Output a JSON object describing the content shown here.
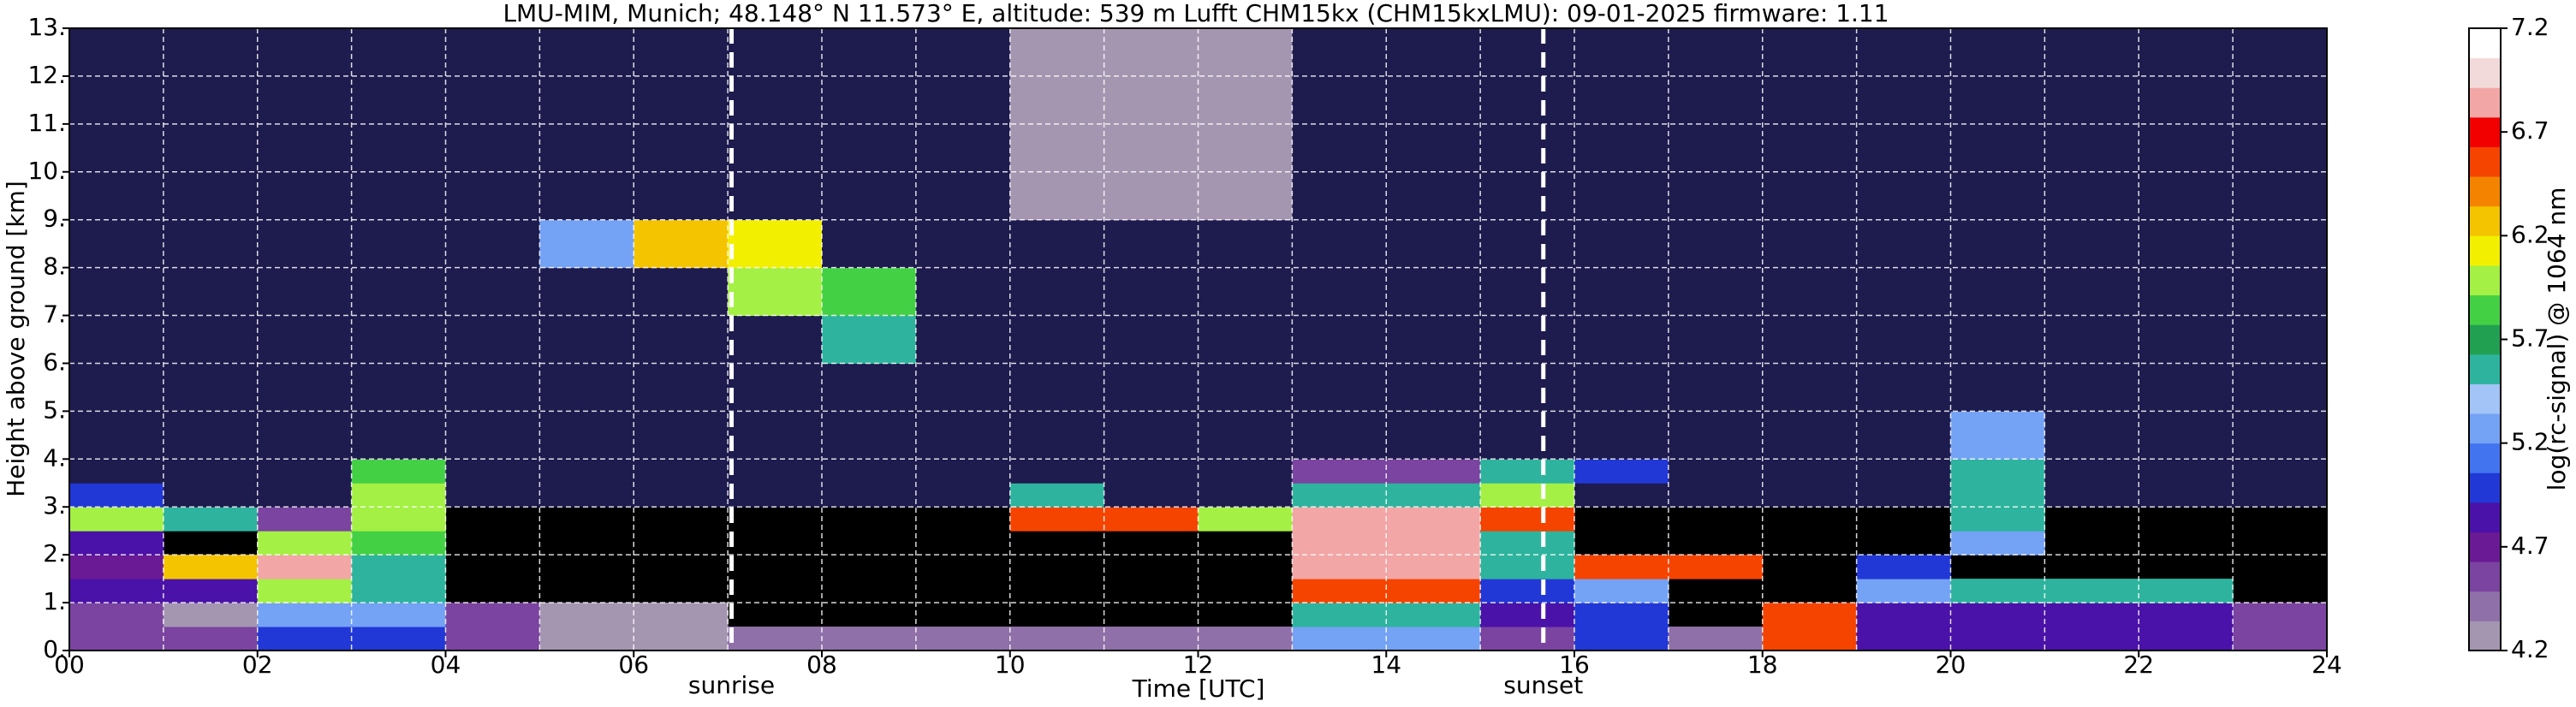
{
  "chart_data": {
    "type": "heatmap",
    "title": "LMU-MIM, Munich; 48.148° N 11.573° E, altitude: 539 m    Lufft CHM15kx (CHM15kxLMU): 09-01-2025    firmware: 1.11",
    "xlabel": "Time [UTC]",
    "ylabel": "Height above ground [km]",
    "xlim": [
      0,
      24
    ],
    "ylim": [
      0,
      13
    ],
    "xticks": [
      {
        "value": 0,
        "label": "00"
      },
      {
        "value": 2,
        "label": "02"
      },
      {
        "value": 4,
        "label": "04"
      },
      {
        "value": 6,
        "label": "06"
      },
      {
        "value": 8,
        "label": "08"
      },
      10,
      12,
      14,
      16,
      18,
      20,
      22,
      24
    ],
    "xminorticks": [
      1,
      3,
      5,
      7,
      9,
      11,
      13,
      15,
      17,
      19,
      21,
      23
    ],
    "yticks": [
      {
        "value": 0,
        "label": "0."
      },
      {
        "value": 1,
        "label": "1."
      },
      {
        "value": 2,
        "label": "2."
      },
      {
        "value": 3,
        "label": "3."
      },
      {
        "value": 4,
        "label": "4."
      },
      {
        "value": 5,
        "label": "5."
      },
      {
        "value": 6,
        "label": "6."
      },
      {
        "value": 7,
        "label": "7."
      },
      {
        "value": 8,
        "label": "8."
      },
      {
        "value": 9,
        "label": "9."
      },
      {
        "value": 10,
        "label": "10."
      },
      {
        "value": 11,
        "label": "11."
      },
      {
        "value": 12,
        "label": "12."
      },
      {
        "value": 13,
        "label": "13."
      }
    ],
    "grid": true,
    "x_edges": [
      0,
      1,
      2,
      3,
      4,
      5,
      6,
      7,
      8,
      9,
      10,
      11,
      12,
      13,
      14,
      15,
      16,
      17,
      18,
      19,
      20,
      21,
      22,
      23,
      24
    ],
    "y_edges": [
      0,
      0.5,
      1,
      1.5,
      2,
      2.5,
      3,
      3.5,
      4,
      5,
      6,
      7,
      8,
      9,
      10,
      11,
      12,
      13
    ],
    "z": [
      [
        4.6,
        4.5,
        5.0,
        5.0,
        4.5,
        4.3,
        4.3,
        4.4,
        4.4,
        4.4,
        4.4,
        4.4,
        4.4,
        5.2,
        5.2,
        4.5,
        5.0,
        4.4,
        6.5,
        4.8,
        4.8,
        4.8,
        4.8,
        4.5
      ],
      [
        4.5,
        4.3,
        5.2,
        5.2,
        4.6,
        4.3,
        4.3,
        null,
        null,
        null,
        null,
        null,
        null,
        5.5,
        5.5,
        4.8,
        5.0,
        null,
        6.5,
        4.8,
        4.9,
        4.9,
        4.9,
        4.5
      ],
      [
        4.8,
        4.9,
        6.0,
        5.5,
        null,
        null,
        null,
        null,
        null,
        null,
        null,
        null,
        null,
        6.5,
        6.5,
        5.0,
        5.3,
        null,
        null,
        5.2,
        5.5,
        5.5,
        5.5,
        null
      ],
      [
        4.7,
        6.3,
        6.8,
        5.6,
        null,
        null,
        null,
        null,
        null,
        null,
        null,
        null,
        null,
        6.8,
        6.8,
        5.5,
        6.5,
        6.5,
        null,
        5.0,
        null,
        null,
        null,
        null
      ],
      [
        4.8,
        null,
        6.0,
        5.8,
        null,
        null,
        null,
        null,
        null,
        null,
        null,
        null,
        null,
        6.8,
        6.8,
        5.5,
        null,
        null,
        null,
        null,
        5.3,
        null,
        null,
        null
      ],
      [
        6.0,
        5.5,
        4.5,
        6.0,
        null,
        null,
        null,
        null,
        null,
        null,
        6.5,
        6.5,
        6.0,
        6.8,
        6.8,
        6.5,
        null,
        null,
        null,
        null,
        5.5,
        null,
        null,
        null
      ],
      [
        5.0,
        4.0,
        4.0,
        6.0,
        4.0,
        4.0,
        4.0,
        4.0,
        4.0,
        4.0,
        5.5,
        4.0,
        4.0,
        5.5,
        5.5,
        6.0,
        4.0,
        4.0,
        4.0,
        4.0,
        5.5,
        4.0,
        4.0,
        4.0
      ],
      [
        4.0,
        4.0,
        4.0,
        5.8,
        4.0,
        4.0,
        4.0,
        4.0,
        4.0,
        4.0,
        4.0,
        4.0,
        4.0,
        4.5,
        4.5,
        5.5,
        5.0,
        4.0,
        4.0,
        4.0,
        5.6,
        4.0,
        4.0,
        4.0
      ],
      [
        4.0,
        4.0,
        4.0,
        4.0,
        4.0,
        4.0,
        4.0,
        4.0,
        4.0,
        4.0,
        4.0,
        4.0,
        4.0,
        4.0,
        4.0,
        4.0,
        4.0,
        4.0,
        4.0,
        4.0,
        5.3,
        4.0,
        4.0,
        4.0
      ],
      [
        4.0,
        4.0,
        4.0,
        4.0,
        4.0,
        4.0,
        4.0,
        4.0,
        4.0,
        4.0,
        4.0,
        4.0,
        4.0,
        4.0,
        4.0,
        4.0,
        4.0,
        4.0,
        4.0,
        4.0,
        4.0,
        4.0,
        4.0,
        4.0
      ],
      [
        4.0,
        4.0,
        4.0,
        4.0,
        4.0,
        4.0,
        4.0,
        4.0,
        5.5,
        4.0,
        4.0,
        4.0,
        4.0,
        4.0,
        4.0,
        4.0,
        4.0,
        4.0,
        4.0,
        4.0,
        4.0,
        4.0,
        4.0,
        4.0
      ],
      [
        4.0,
        4.0,
        4.0,
        4.0,
        4.0,
        4.0,
        4.0,
        6.0,
        5.8,
        4.0,
        4.0,
        4.0,
        4.0,
        4.0,
        4.0,
        4.0,
        4.0,
        4.0,
        4.0,
        4.0,
        4.0,
        4.0,
        4.0,
        4.0
      ],
      [
        4.0,
        4.0,
        4.0,
        4.0,
        4.0,
        5.3,
        6.2,
        6.1,
        4.0,
        4.0,
        4.0,
        4.0,
        4.0,
        4.0,
        4.0,
        4.0,
        4.0,
        4.0,
        4.0,
        4.0,
        4.0,
        4.0,
        4.0,
        4.0
      ],
      [
        4.0,
        4.0,
        4.0,
        4.0,
        4.0,
        4.0,
        4.0,
        4.0,
        4.0,
        4.0,
        4.2,
        4.2,
        4.2,
        4.0,
        4.0,
        4.0,
        4.0,
        4.0,
        4.0,
        4.0,
        4.0,
        4.0,
        4.0,
        4.0
      ],
      [
        4.0,
        4.0,
        4.0,
        4.0,
        4.0,
        4.0,
        4.0,
        4.0,
        4.0,
        4.0,
        4.2,
        4.2,
        4.2,
        4.0,
        4.0,
        4.0,
        4.0,
        4.0,
        4.0,
        4.0,
        4.0,
        4.0,
        4.0,
        4.0
      ],
      [
        4.0,
        4.0,
        4.0,
        4.0,
        4.0,
        4.0,
        4.0,
        4.0,
        4.0,
        4.0,
        4.2,
        4.2,
        4.2,
        4.0,
        4.0,
        4.0,
        4.0,
        4.0,
        4.0,
        4.0,
        4.0,
        4.0,
        4.0,
        4.0
      ],
      [
        4.0,
        4.0,
        4.0,
        4.0,
        4.0,
        4.0,
        4.0,
        4.0,
        4.0,
        4.0,
        4.2,
        4.2,
        4.2,
        4.0,
        4.0,
        4.0,
        4.0,
        4.0,
        4.0,
        4.0,
        4.0,
        4.0,
        4.0,
        4.0
      ]
    ],
    "under_color": "#1e1b4e",
    "nan_color": "#000000",
    "colorbar": {
      "label": "log(rc-signal) @ 1064 nm",
      "lim": [
        4.2,
        7.2
      ],
      "ticks": [
        4.2,
        4.7,
        5.2,
        5.7,
        6.2,
        6.7,
        7.2
      ],
      "colors": [
        "#a496b0",
        "#9070a8",
        "#7a44a0",
        "#6a1a94",
        "#4a12a8",
        "#2238d6",
        "#4274f0",
        "#74a2f4",
        "#a2c4f6",
        "#2eb49e",
        "#22a052",
        "#44d044",
        "#a4f044",
        "#f2f000",
        "#f4c400",
        "#f48400",
        "#f44400",
        "#f20000",
        "#f2a6a6",
        "#f2dada",
        "#ffffff"
      ]
    },
    "annotations": [
      {
        "text": "sunrise",
        "x": 7.04
      },
      {
        "text": "sunset",
        "x": 15.67
      }
    ]
  }
}
